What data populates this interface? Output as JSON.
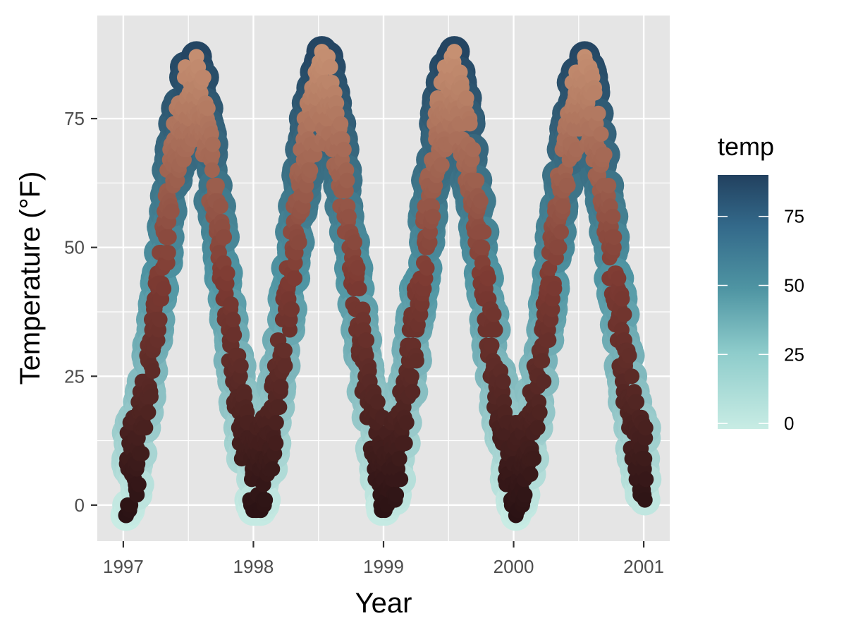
{
  "chart_data": {
    "type": "scatter",
    "title": "",
    "xlabel": "Year",
    "ylabel": "Temperature (°F)",
    "xlim": [
      1996.8,
      2001.2
    ],
    "ylim": [
      -7,
      95
    ],
    "x_ticks": [
      1997,
      1998,
      1999,
      2000,
      2001
    ],
    "x_tick_labels": [
      "1997",
      "1998",
      "1999",
      "2000",
      "2001"
    ],
    "y_ticks": [
      0,
      25,
      50,
      75
    ],
    "y_tick_labels": [
      "0",
      "25",
      "50",
      "75"
    ],
    "grid": true,
    "legend": {
      "title": "temp",
      "position": "right",
      "range": [
        -2,
        90
      ],
      "ticks": [
        0,
        25,
        50,
        75
      ],
      "tick_labels": [
        "0",
        "25",
        "50",
        "75"
      ]
    },
    "outline_colors": {
      "low": "#c8ece4",
      "mid": "#4f95a3",
      "high": "#22415f"
    },
    "fill_colors": {
      "low": "#2a1214",
      "mid": "#7e3b33",
      "high": "#c99475"
    },
    "series": [
      {
        "name": "temp",
        "x": [],
        "y": []
      }
    ]
  }
}
